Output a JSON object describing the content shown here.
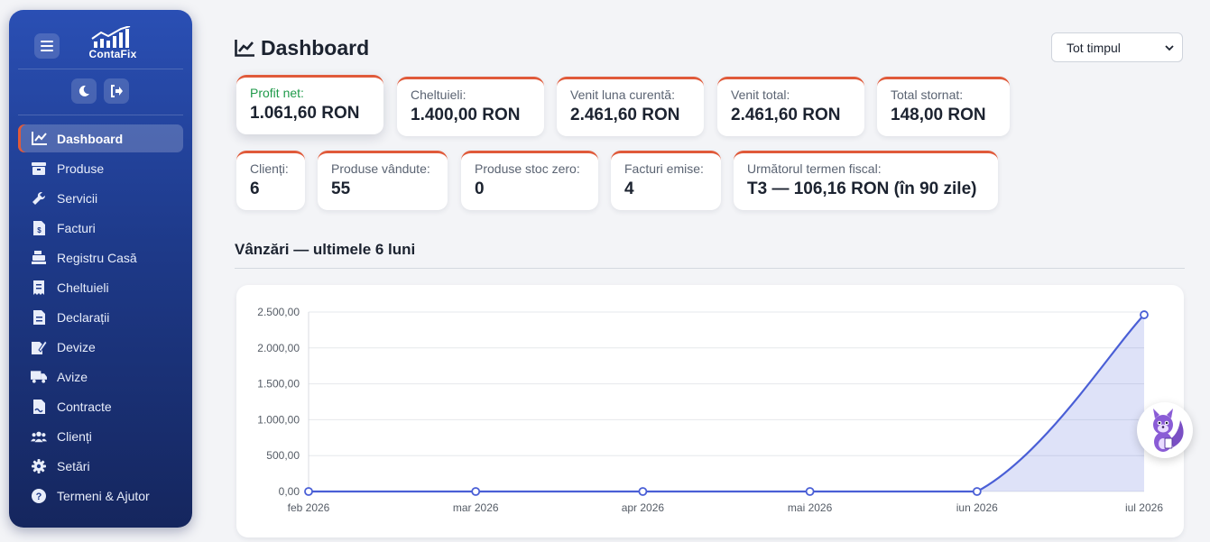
{
  "app": {
    "brand": "ContaFix"
  },
  "sidebar": {
    "items": [
      {
        "label": "Dashboard",
        "icon": "chart-line-icon",
        "active": true
      },
      {
        "label": "Produse",
        "icon": "box-icon"
      },
      {
        "label": "Servicii",
        "icon": "wrench-icon"
      },
      {
        "label": "Facturi",
        "icon": "invoice-icon"
      },
      {
        "label": "Registru Casă",
        "icon": "cash-register-icon"
      },
      {
        "label": "Cheltuieli",
        "icon": "receipt-icon"
      },
      {
        "label": "Declarații",
        "icon": "document-icon"
      },
      {
        "label": "Devize",
        "icon": "signature-icon"
      },
      {
        "label": "Avize",
        "icon": "truck-icon"
      },
      {
        "label": "Contracte",
        "icon": "contract-icon"
      },
      {
        "label": "Clienți",
        "icon": "users-icon"
      },
      {
        "label": "Setări",
        "icon": "gear-icon"
      },
      {
        "label": "Termeni & Ajutor",
        "icon": "help-icon"
      }
    ]
  },
  "header": {
    "title": "Dashboard",
    "period": "Tot timpul"
  },
  "stats_row1": [
    {
      "label": "Profit net:",
      "value": "1.061,60 RON"
    },
    {
      "label": "Cheltuieli:",
      "value": "1.400,00 RON"
    },
    {
      "label": "Venit luna curentă:",
      "value": "2.461,60 RON"
    },
    {
      "label": "Venit total:",
      "value": "2.461,60 RON"
    },
    {
      "label": "Total stornat:",
      "value": "148,00 RON"
    }
  ],
  "stats_row2": [
    {
      "label": "Clienți:",
      "value": "6"
    },
    {
      "label": "Produse vândute:",
      "value": "55"
    },
    {
      "label": "Produse stoc zero:",
      "value": "0"
    },
    {
      "label": "Facturi emise:",
      "value": "4"
    },
    {
      "label": "Următorul termen fiscal:",
      "value": "T3 — 106,16 RON (în 90 zile)"
    }
  ],
  "sales": {
    "title": "Vânzări — ultimele 6 luni"
  },
  "colors": {
    "accent": "#e05a3a",
    "line": "#4a5fd6",
    "profit": "#1f9a4a"
  },
  "chart_data": {
    "type": "area",
    "categories": [
      "feb 2026",
      "mar 2026",
      "apr 2026",
      "mai 2026",
      "iun 2026",
      "iul 2026"
    ],
    "values": [
      0,
      0,
      0,
      0,
      0,
      2461.6
    ],
    "yticks": [
      "0,00",
      "500,00",
      "1.000,00",
      "1.500,00",
      "2.000,00",
      "2.500,00"
    ],
    "ylim": [
      0,
      2500
    ],
    "grid": true,
    "legend": "none"
  }
}
